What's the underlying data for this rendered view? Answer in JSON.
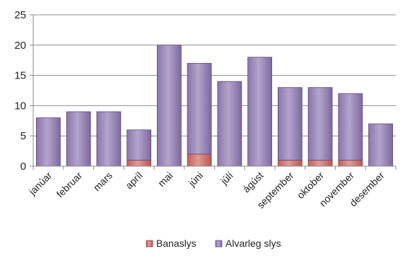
{
  "chart_data": {
    "type": "bar",
    "stacked": true,
    "categories": [
      "janúar",
      "februar",
      "mars",
      "apríl",
      "mai",
      "júni",
      "júlí",
      "ágúst",
      "september",
      "oktober",
      "november",
      "desember"
    ],
    "series": [
      {
        "name": "Banaslys",
        "color": "#c0504d",
        "values": [
          0,
          0,
          0,
          1,
          0,
          2,
          0,
          0,
          1,
          1,
          1,
          0
        ]
      },
      {
        "name": "Alvarleg slys",
        "color": "#8064a2",
        "values": [
          8,
          9,
          9,
          5,
          20,
          15,
          14,
          18,
          12,
          12,
          11,
          7
        ]
      }
    ],
    "yticks": [
      0,
      5,
      10,
      15,
      20,
      25
    ],
    "ylim": [
      0,
      25
    ],
    "grid": true,
    "legend": "bottom-center",
    "title": "",
    "xlabel": "",
    "ylabel": ""
  }
}
